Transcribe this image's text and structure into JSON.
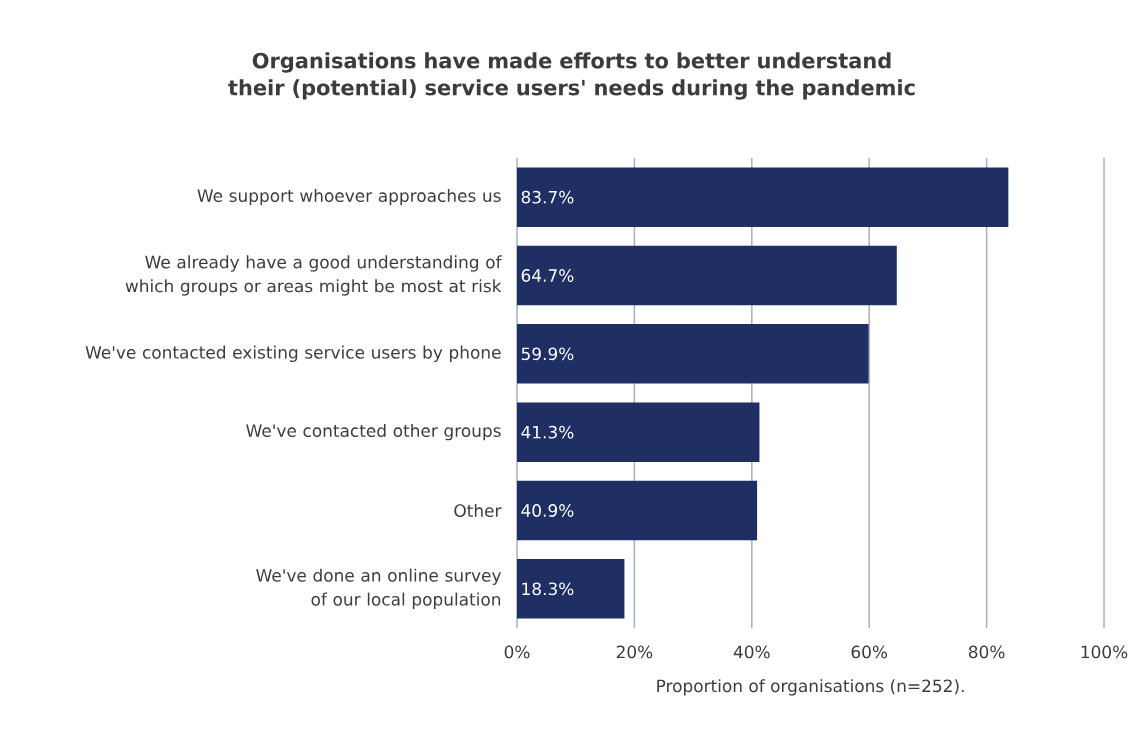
{
  "chart_data": {
    "type": "bar",
    "orientation": "horizontal",
    "title": "Organisations have made efforts to better understand their (potential) service users' needs during the pandemic",
    "xlabel": "Proportion of organisations (n=252).",
    "categories": [
      "We support whoever approaches us",
      "We already have a good understanding of which groups or areas might be most at risk",
      "We've contacted existing service users by phone",
      "We've contacted other groups",
      "Other",
      "We've done an online survey of our local population"
    ],
    "values": [
      83.7,
      64.7,
      59.9,
      41.3,
      40.9,
      18.3
    ],
    "value_labels": [
      "83.7%",
      "64.7%",
      "59.9%",
      "41.3%",
      "40.9%",
      "18.3%"
    ],
    "color": "#1f2f63",
    "xlim": [
      0,
      100
    ],
    "xticks": [
      {
        "value": 0,
        "label": "0%"
      },
      {
        "value": 20,
        "label": "20%"
      },
      {
        "value": 40,
        "label": "40%"
      },
      {
        "value": 60,
        "label": "60%"
      },
      {
        "value": 80,
        "label": "80%"
      },
      {
        "value": 100,
        "label": "100%"
      }
    ],
    "grid": "x"
  }
}
